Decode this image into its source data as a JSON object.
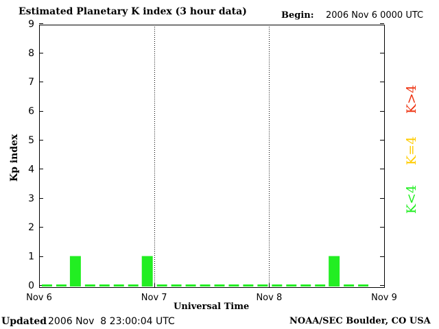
{
  "header": {
    "title": "Estimated Planetary K index (3 hour data)",
    "begin_label": "Begin:",
    "begin_value": "2006 Nov 6 0000 UTC"
  },
  "footer": {
    "updated_label": "Updated",
    "updated_value": "2006 Nov  8 23:00:04 UTC",
    "credit": "NOAA/SEC Boulder, CO USA"
  },
  "legend": {
    "low": "K<4",
    "mid": "K=4",
    "high": "K>4"
  },
  "colors": {
    "low": "#22ee22",
    "mid": "#ffcc00",
    "high": "#ee3311"
  },
  "chart_data": {
    "type": "bar",
    "title": "Estimated Planetary K index (3 hour data)",
    "xlabel": "Universal Time",
    "ylabel": "Kp index",
    "ylim": [
      0,
      9
    ],
    "yticks": [
      "0",
      "1",
      "2",
      "3",
      "4",
      "5",
      "6",
      "7",
      "8",
      "9"
    ],
    "xticks": [
      "Nov 6",
      "Nov 7",
      "Nov 8",
      "Nov 9"
    ],
    "interval_hours": 3,
    "values": [
      0,
      0,
      1,
      0,
      0,
      0,
      0,
      1,
      0,
      0,
      0,
      0,
      0,
      0,
      0,
      0,
      0,
      0,
      0,
      0,
      1,
      0,
      0
    ],
    "grid": "dotted vertical lines at day boundaries"
  }
}
